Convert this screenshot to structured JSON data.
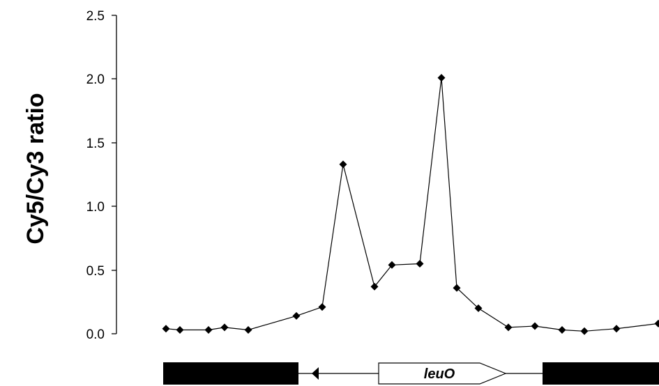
{
  "chart_data": {
    "type": "line",
    "title": "",
    "xlabel": "",
    "ylabel": "Cy5/Cy3 ratio",
    "ylim": [
      0,
      2.5
    ],
    "yticks": [
      "0.0",
      "0.5",
      "1.0",
      "1.5",
      "2.0",
      "2.5"
    ],
    "grid": false,
    "legend": "none",
    "series": [
      {
        "marker": "diamond",
        "color": "#000000",
        "values": [
          0.04,
          0.03,
          0.03,
          0.05,
          0.03,
          0.14,
          0.21,
          1.33,
          0.37,
          0.54,
          0.55,
          2.01,
          0.36,
          0.2,
          0.05,
          0.06,
          0.03,
          0.02,
          0.04,
          0.08
        ]
      }
    ],
    "gene_map": {
      "gene_label": "leuO",
      "label_color": "#000000"
    }
  }
}
